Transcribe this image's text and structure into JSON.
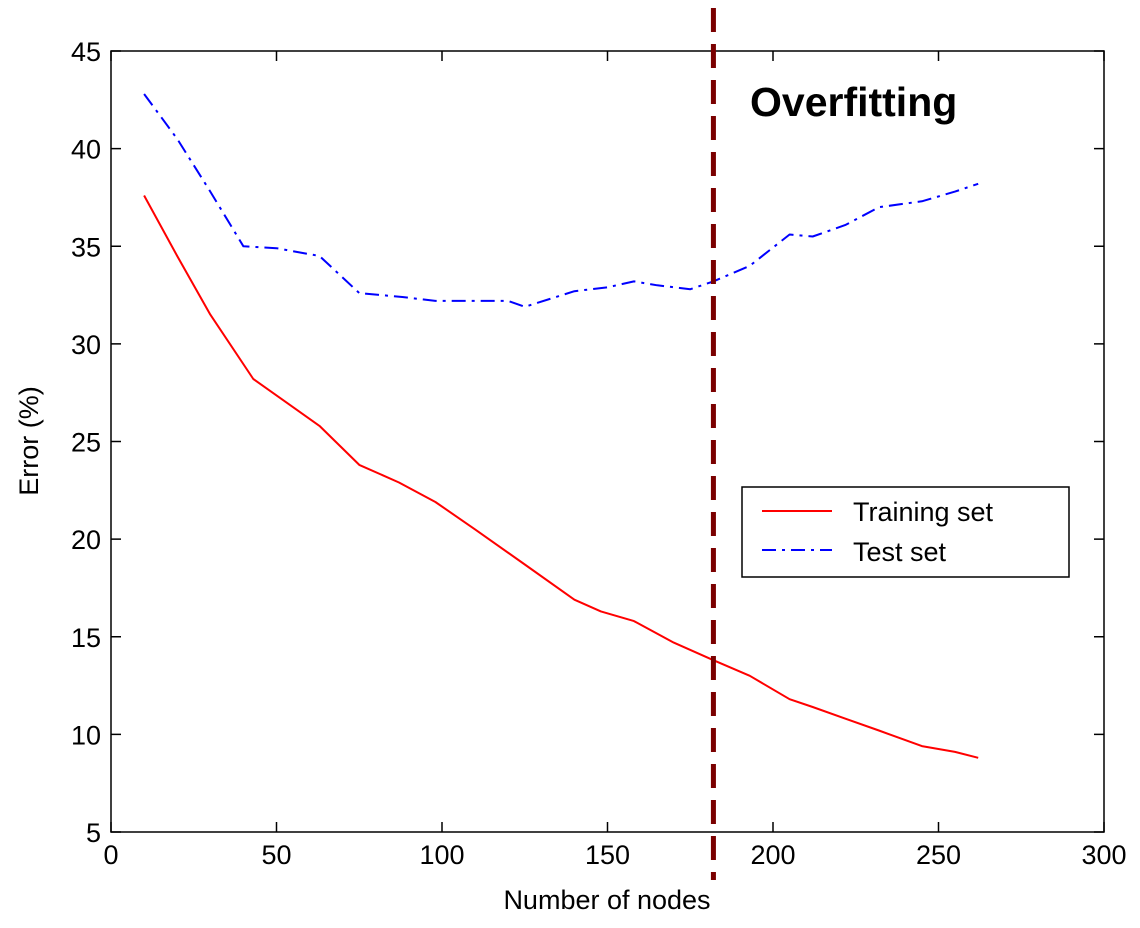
{
  "chart_data": {
    "type": "line",
    "title": "",
    "xlabel": "Number of nodes",
    "ylabel": "Error (%)",
    "xlim": [
      0,
      300
    ],
    "ylim": [
      5,
      45
    ],
    "xticks": [
      0,
      50,
      100,
      150,
      200,
      250,
      300
    ],
    "yticks": [
      5,
      10,
      15,
      20,
      25,
      30,
      35,
      40,
      45
    ],
    "grid": false,
    "legend_position": "center-right",
    "series": [
      {
        "name": "Training set",
        "color": "#ff0000",
        "style": "solid",
        "x": [
          10,
          20,
          30,
          43,
          53,
          63,
          75,
          87,
          98,
          110,
          125,
          140,
          148,
          158,
          170,
          182,
          193,
          205,
          212,
          222,
          232,
          245,
          255,
          262
        ],
        "y": [
          37.6,
          34.5,
          31.5,
          28.2,
          27.0,
          25.8,
          23.8,
          22.9,
          21.9,
          20.5,
          18.7,
          16.9,
          16.3,
          15.8,
          14.7,
          13.8,
          13.0,
          11.8,
          11.4,
          10.8,
          10.2,
          9.4,
          9.1,
          8.8
        ]
      },
      {
        "name": "Test set",
        "color": "#0000ff",
        "style": "dashdot",
        "x": [
          10,
          20,
          30,
          40,
          50,
          63,
          75,
          88,
          98,
          110,
          120,
          125,
          140,
          150,
          158,
          165,
          175,
          182,
          193,
          205,
          212,
          222,
          232,
          245,
          255,
          262
        ],
        "y": [
          42.8,
          40.5,
          37.8,
          35.0,
          34.9,
          34.5,
          32.6,
          32.4,
          32.2,
          32.2,
          32.2,
          31.9,
          32.7,
          32.9,
          33.2,
          33.0,
          32.8,
          33.2,
          34.0,
          35.6,
          35.5,
          36.1,
          37.0,
          37.3,
          37.8,
          38.2
        ]
      }
    ],
    "annotations": [
      {
        "text": "Overfitting",
        "x_line": 182,
        "line_color": "#7a0000",
        "line_style": "dashed"
      }
    ]
  }
}
